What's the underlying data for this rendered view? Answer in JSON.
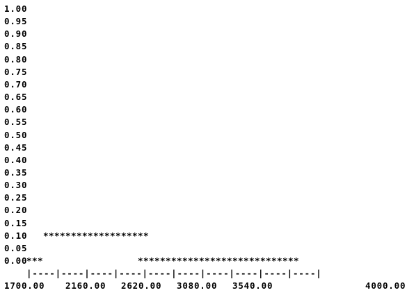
{
  "chart_data": {
    "type": "line",
    "title": "",
    "xlabel": "",
    "ylabel": "",
    "xlim": [
      1700,
      4000
    ],
    "ylim": [
      0,
      1
    ],
    "y_ticks": [
      "1.00",
      "0.95",
      "0.90",
      "0.85",
      "0.80",
      "0.75",
      "0.70",
      "0.65",
      "0.60",
      "0.55",
      "0.50",
      "0.45",
      "0.40",
      "0.35",
      "0.30",
      "0.25",
      "0.20",
      "0.15",
      "0.10",
      "0.05",
      "0.00"
    ],
    "x_ticks": [
      "1700.00",
      "2160.00",
      "2620.00",
      "3080.00",
      "3540.00",
      "4000.00"
    ],
    "axis_rule": "|----|----|----|----|----|----|----|----|----|----|",
    "marker": "*",
    "series": [
      {
        "points": [
          {
            "x": 1700,
            "y": 0.0
          },
          {
            "x": 1746,
            "y": 0.0
          },
          {
            "x": 1792,
            "y": 0.0
          },
          {
            "x": 1838,
            "y": 0.1
          },
          {
            "x": 2562,
            "y": 0.1
          },
          {
            "x": 2608,
            "y": 0.0
          },
          {
            "x": 4000,
            "y": 0.0
          }
        ],
        "segments": [
          {
            "y": 0.0,
            "x_start": 1700,
            "count": 3
          },
          {
            "y": 0.1,
            "x_start": 1838,
            "count": 19
          },
          {
            "y": 0.0,
            "x_start": 2608,
            "count": 29
          }
        ]
      }
    ]
  }
}
